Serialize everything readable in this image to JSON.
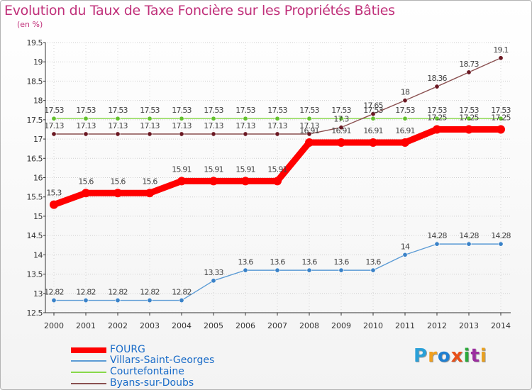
{
  "header": {
    "title": "Evolution du Taux de Taxe Foncière sur les Propriétés Bâties",
    "unit": "(en %)"
  },
  "logo": {
    "letters": [
      "P",
      "r",
      "o",
      "x",
      "i",
      "t",
      "i"
    ],
    "colors": [
      "#2aa0d8",
      "#f0a020",
      "#1f7fd0",
      "#e8501a",
      "#2ca83c",
      "#9c2ea0",
      "#e8a020"
    ]
  },
  "chart_data": {
    "type": "line",
    "title": "Evolution du Taux de Taxe Foncière sur les Propriétés Bâties",
    "ylabel": "(en %)",
    "xlabel": "",
    "ylim": [
      12.5,
      19.5
    ],
    "yticks": [
      "12.5",
      "13",
      "13.5",
      "14",
      "14.5",
      "15",
      "15.5",
      "16",
      "16.5",
      "17",
      "17.5",
      "18",
      "18.5",
      "19",
      "19.5"
    ],
    "x": [
      "2000",
      "2001",
      "2002",
      "2003",
      "2004",
      "2005",
      "2006",
      "2007",
      "2008",
      "2009",
      "2010",
      "2011",
      "2012",
      "2013",
      "2014"
    ],
    "series": [
      {
        "name": "Villars-Saint-Georges",
        "color": "#5b9bd5",
        "dot": "#3a82c8",
        "values": [
          12.82,
          12.82,
          12.82,
          12.82,
          12.82,
          13.33,
          13.6,
          13.6,
          13.6,
          13.6,
          13.6,
          14,
          14.28,
          14.28,
          14.28
        ],
        "labels": [
          "12.82",
          "12.82",
          "12.82",
          "12.82",
          "12.82",
          "13.33",
          "13.6",
          "13.6",
          "13.6",
          "13.6",
          "13.6",
          "14",
          "14.28",
          "14.28",
          "14.28"
        ]
      },
      {
        "name": "Courtefontaine",
        "color": "#88d84a",
        "dot": "#64c030",
        "values": [
          17.53,
          17.53,
          17.53,
          17.53,
          17.53,
          17.53,
          17.53,
          17.53,
          17.53,
          17.53,
          17.53,
          17.53,
          17.53,
          17.53,
          17.53
        ],
        "labels": [
          "17.53",
          "17.53",
          "17.53",
          "17.53",
          "17.53",
          "17.53",
          "17.53",
          "17.53",
          "17.53",
          "17.53",
          "17.53",
          "17.53",
          "17.53",
          "17.53",
          "17.53"
        ]
      },
      {
        "name": "Byans-sur-Doubs",
        "color": "#8a5050",
        "dot": "#6a1822",
        "values": [
          17.13,
          17.13,
          17.13,
          17.13,
          17.13,
          17.13,
          17.13,
          17.13,
          17.13,
          17.3,
          17.65,
          18,
          18.36,
          18.73,
          19.1
        ],
        "labels": [
          "17.13",
          "17.13",
          "17.13",
          "17.13",
          "17.13",
          "17.13",
          "17.13",
          "17.13",
          "17.13",
          "17.3",
          "17.65",
          "18",
          "18.36",
          "18.73",
          "19.1"
        ]
      },
      {
        "name": "FOURG",
        "color": "#ff0000",
        "dot": "#ff0000",
        "values": [
          15.3,
          15.6,
          15.6,
          15.6,
          15.91,
          15.91,
          15.91,
          15.91,
          16.91,
          16.91,
          16.91,
          16.91,
          17.25,
          17.25,
          17.25
        ],
        "labels": [
          "15.3",
          "15.6",
          "15.6",
          "15.6",
          "15.91",
          "15.91",
          "15.91",
          "15.91",
          "16.91",
          "16.91",
          "16.91",
          "16.91",
          "17.25",
          "17.25",
          "17.25"
        ]
      }
    ],
    "legend_order": [
      "FOURG",
      "Villars-Saint-Georges",
      "Courtefontaine",
      "Byans-sur-Doubs"
    ]
  }
}
